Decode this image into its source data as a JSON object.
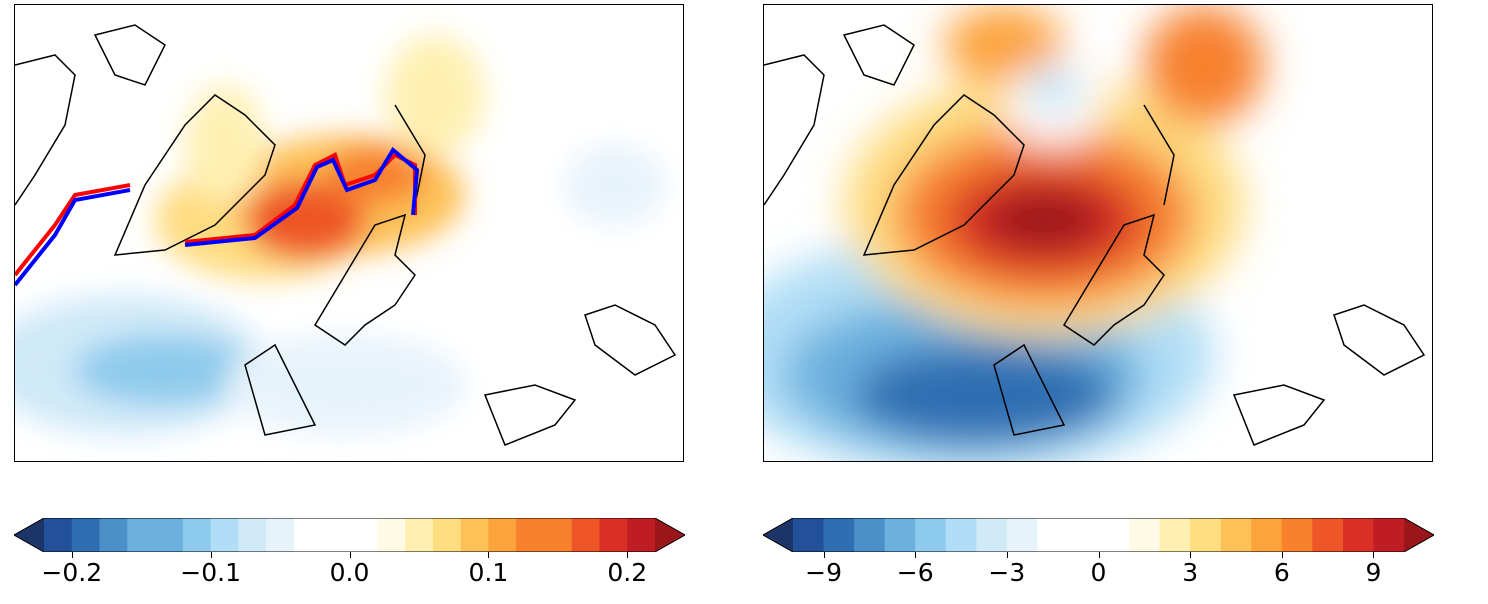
{
  "chart_data": [
    {
      "type": "heatmap",
      "title": "",
      "colorbar": {
        "ticks": [
          "−0.2",
          "−0.1",
          "0.0",
          "0.1",
          "0.2"
        ],
        "tick_values": [
          -0.2,
          -0.1,
          0,
          0.1,
          0.2
        ],
        "range": [
          -0.22,
          0.22
        ],
        "step": 0.02,
        "extend": "both"
      },
      "features": [
        "coastlines",
        "red contour line",
        "blue contour line"
      ]
    },
    {
      "type": "heatmap",
      "title": "",
      "colorbar": {
        "ticks": [
          "−9",
          "−6",
          "−3",
          "0",
          "3",
          "6",
          "9"
        ],
        "tick_values": [
          -9,
          -6,
          -3,
          0,
          3,
          6,
          9
        ],
        "range": [
          -10,
          10
        ],
        "step": 1,
        "extend": "both"
      },
      "features": [
        "coastlines"
      ]
    }
  ],
  "colors": {
    "cmap": [
      "#1d3469",
      "#23509a",
      "#2f6eb2",
      "#4b90c9",
      "#6cb0de",
      "#8ecaed",
      "#b0def6",
      "#d0eaf8",
      "#e7f3fb",
      "#ffffff",
      "#ffffff",
      "#fffae6",
      "#fff0b2",
      "#fedc80",
      "#fdc158",
      "#fca33b",
      "#f7812d",
      "#ee5628",
      "#d92f26",
      "#bd1d23",
      "#9b161b"
    ],
    "line_red": "#ff0000",
    "line_blue": "#0000ff"
  }
}
